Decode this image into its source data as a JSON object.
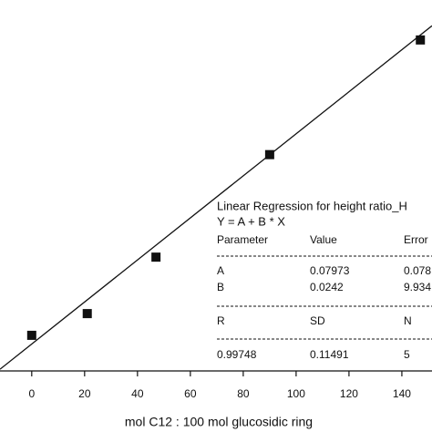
{
  "chart_data": {
    "type": "scatter",
    "x_label": "mol C12 : 100 mol glucosidic ring",
    "x": [
      0,
      21,
      47,
      90,
      147
    ],
    "values": [
      0.18,
      0.43,
      1.08,
      2.26,
      3.58
    ],
    "color": "#111111",
    "xlim": [
      -12,
      151.4
    ],
    "ylim": [
      -0.23,
      4.04
    ],
    "xticks": [
      0,
      20,
      40,
      60,
      80,
      100,
      120,
      140
    ],
    "regression": {
      "title": "Linear Regression for height  ratio_H",
      "equation": "Y = A + B * X",
      "headers": [
        "Parameter",
        "Value",
        "Error"
      ],
      "rows": [
        [
          "A",
          0.07973,
          "0.078"
        ],
        [
          "B",
          0.0242,
          "9.934"
        ]
      ],
      "stats_headers": [
        "R",
        "SD",
        "N"
      ],
      "stats": [
        0.99748,
        0.11491,
        5
      ]
    }
  }
}
